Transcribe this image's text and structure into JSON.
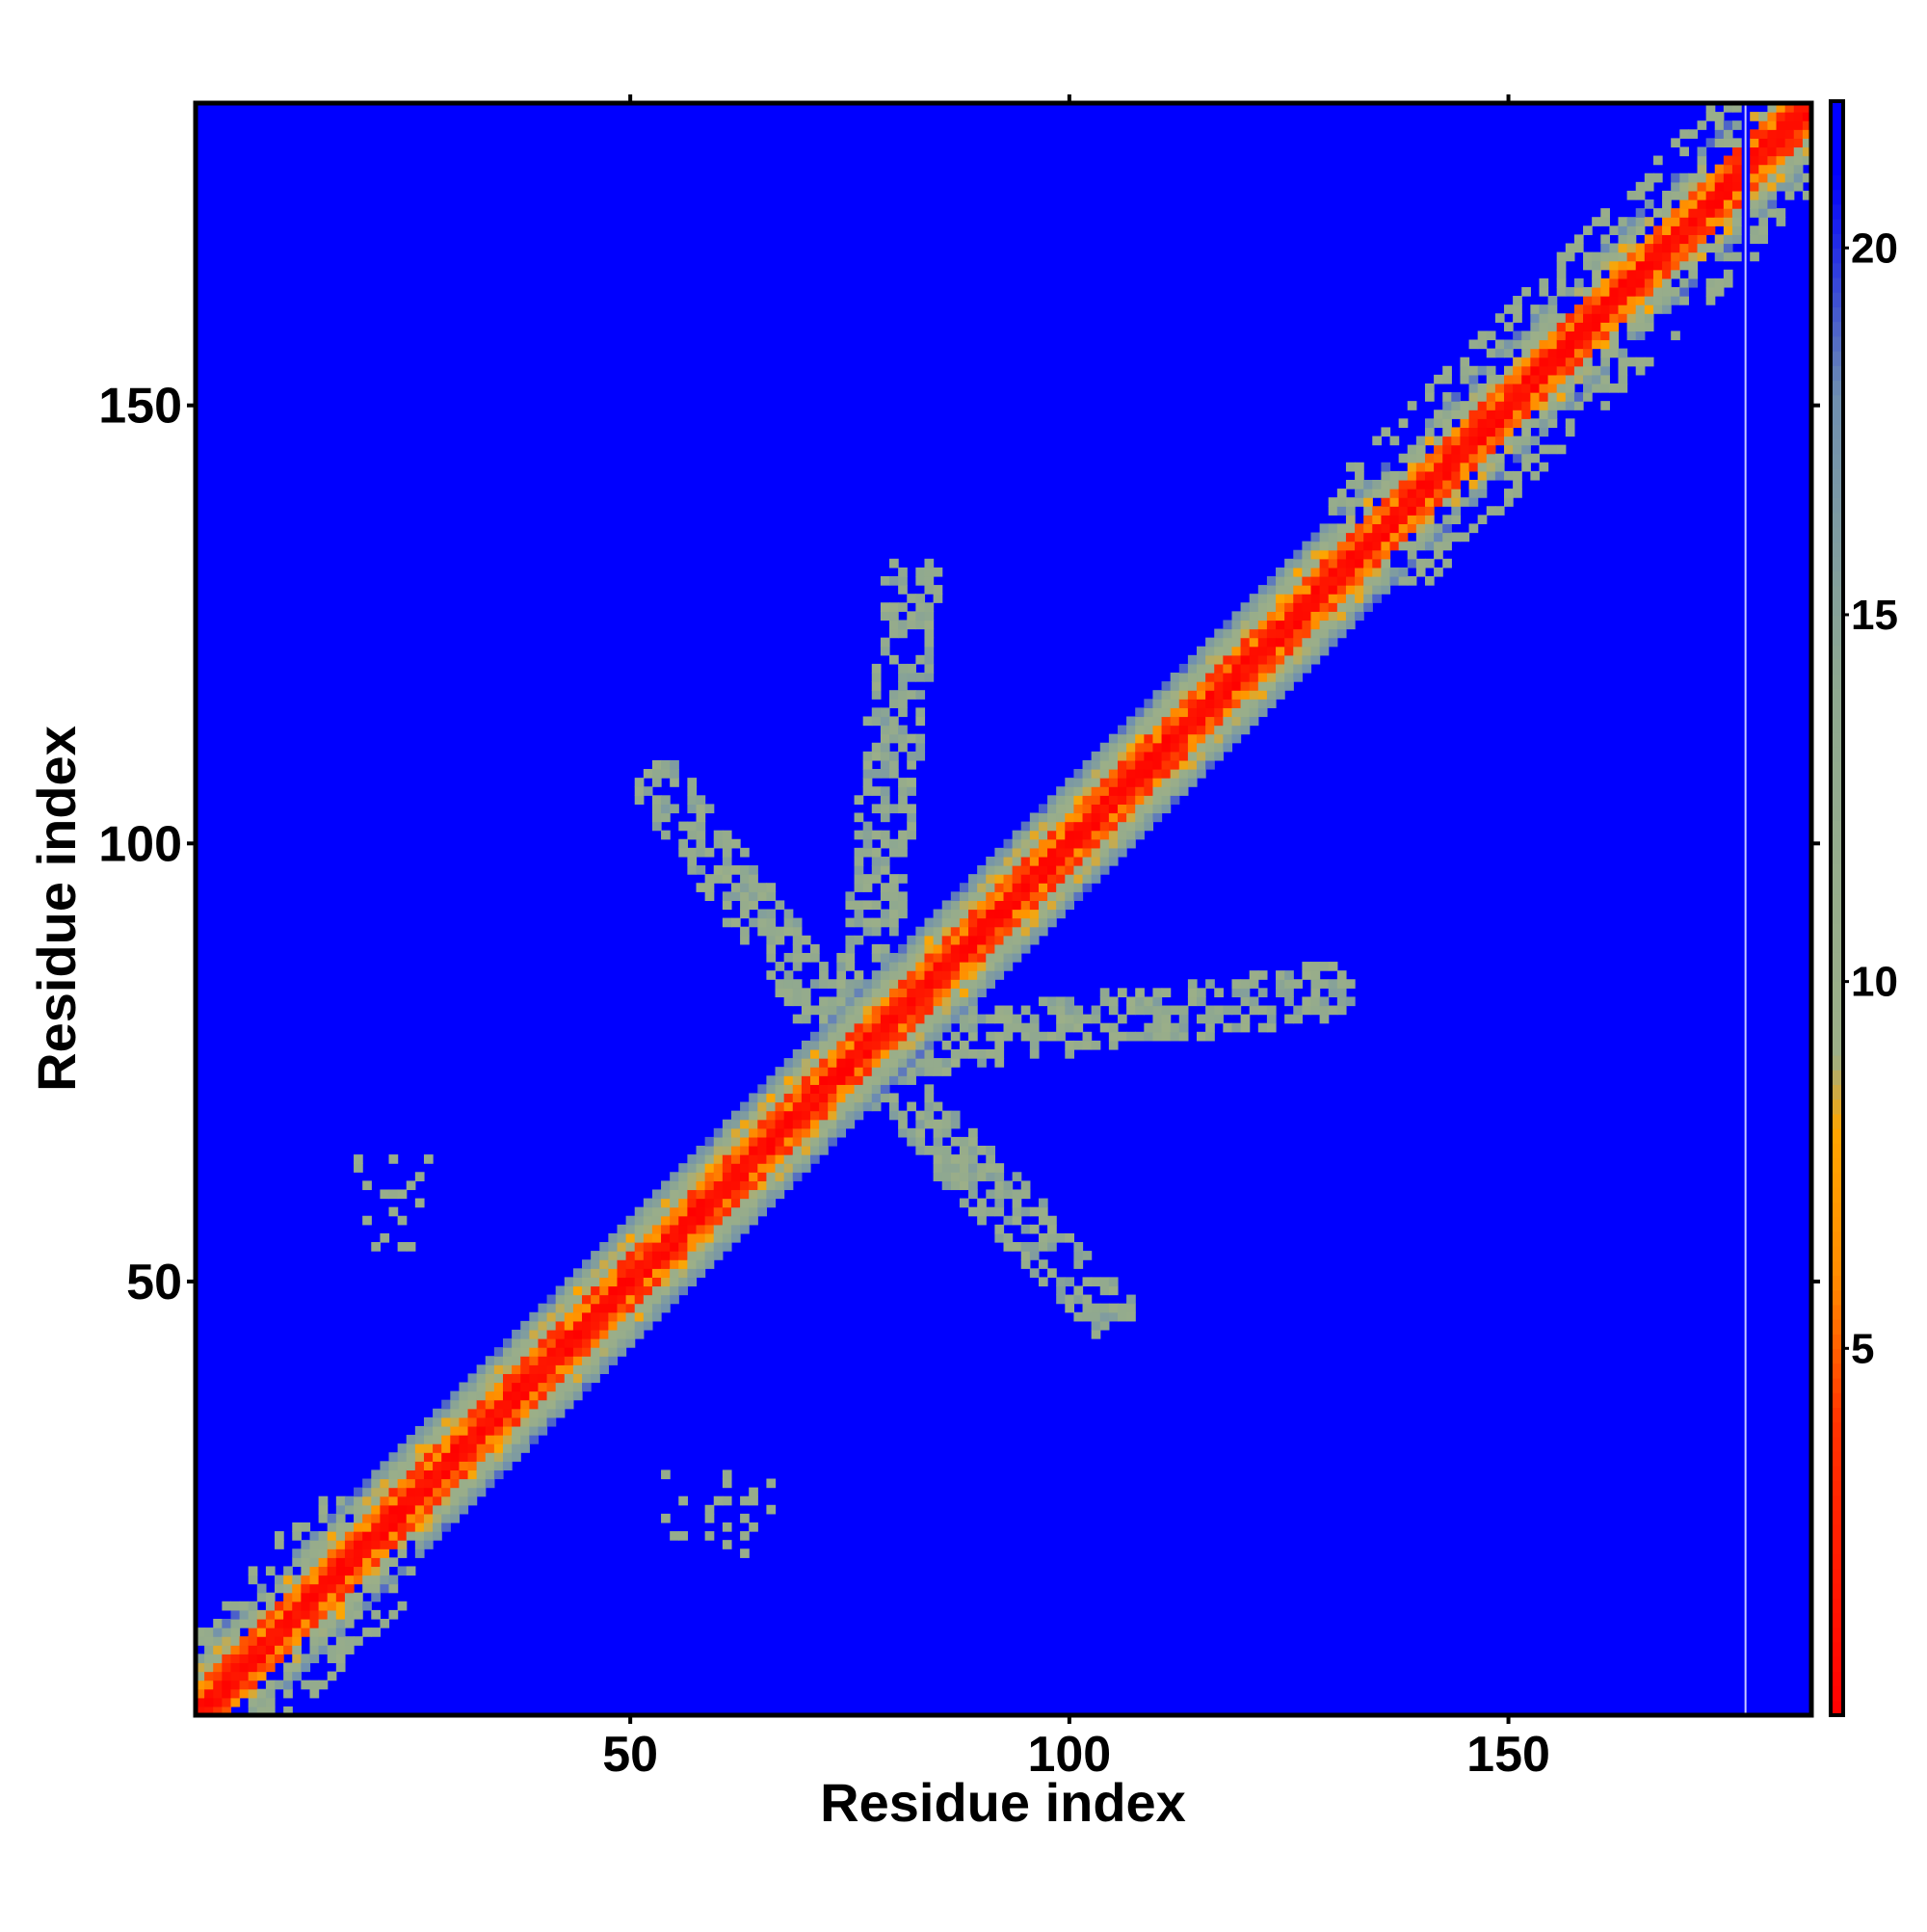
{
  "chart_data": {
    "type": "heatmap",
    "title": "",
    "xlabel": "Residue index",
    "ylabel": "Residue index",
    "xlim": [
      1,
      184
    ],
    "ylim": [
      1,
      184
    ],
    "x_ticks": [
      50,
      100,
      150
    ],
    "y_ticks": [
      50,
      100,
      150
    ],
    "colorbar": {
      "ticks": [
        5,
        10,
        15,
        20
      ],
      "range": [
        0,
        22
      ],
      "stops": [
        {
          "value": 0,
          "color": "#ff0000"
        },
        {
          "value": 4,
          "color": "#ff3300"
        },
        {
          "value": 6,
          "color": "#ff8c00"
        },
        {
          "value": 8,
          "color": "#ffa500"
        },
        {
          "value": 9,
          "color": "#9caf88"
        },
        {
          "value": 14,
          "color": "#8fa890"
        },
        {
          "value": 18,
          "color": "#6f8fb0"
        },
        {
          "value": 21,
          "color": "#0000ff"
        }
      ]
    },
    "background_color": "#0000ff",
    "structure": {
      "diagonal_band_width": 7,
      "antidiagonal_arms": [
        {
          "from": [
            76,
            76
          ],
          "to": [
            54,
            106
          ]
        },
        {
          "from": [
            76,
            76
          ],
          "to": [
            82,
            130
          ]
        },
        {
          "from": [
            76,
            76
          ],
          "to": [
            104,
            47
          ]
        },
        {
          "from": [
            76,
            76
          ],
          "to": [
            129,
            83
          ]
        }
      ],
      "isolated_patches": [
        {
          "x_range": [
            19,
            27
          ],
          "y_range": [
            54,
            66
          ]
        },
        {
          "x_range": [
            54,
            66
          ],
          "y_range": [
            19,
            28
          ]
        }
      ],
      "diagonal_scatter": [
        {
          "x_range": [
            1,
            25
          ],
          "y_range": [
            1,
            25
          ]
        },
        {
          "x_range": [
            130,
            184
          ],
          "y_range": [
            130,
            184
          ]
        }
      ],
      "gap_column_x": 177
    },
    "grid": false,
    "legend": "colorbar right"
  }
}
